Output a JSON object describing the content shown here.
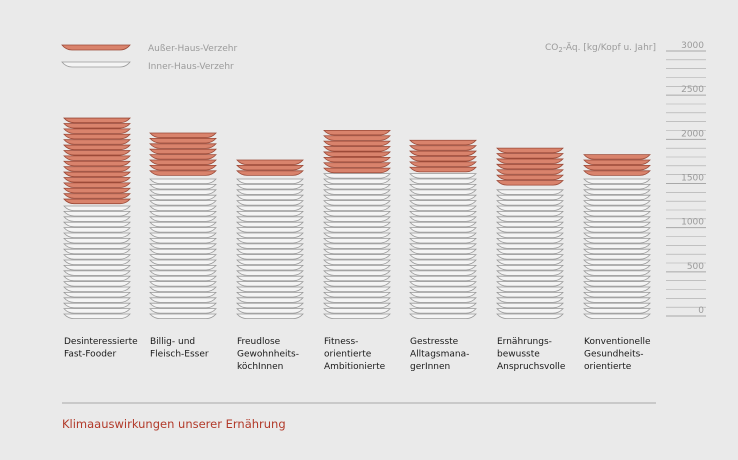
{
  "chart_data": {
    "type": "bar",
    "stacked": true,
    "title": "Klimaauswirkungen unserer Ernährung",
    "unit_label": "CO2-Äq. [kg/Kopf u. Jahr]",
    "ylim": [
      0,
      3000
    ],
    "yticks": [
      0,
      500,
      1000,
      1500,
      2000,
      2500,
      3000
    ],
    "categories": [
      [
        "Desinteressierte",
        "Fast-Fooder"
      ],
      [
        "Billig- und",
        "Fleisch-Esser"
      ],
      [
        "Freudlose",
        "Gewohnheits-",
        "köchInnen"
      ],
      [
        "Fitness-",
        "orientierte",
        "Ambitionierte"
      ],
      [
        "Gestresste",
        "Alltagsmana-",
        "gerInnen"
      ],
      [
        "Ernährungs-",
        "bewusste",
        "Anspruchsvolle"
      ],
      [
        "Konventionelle",
        "Gesundheits-",
        "orientierte"
      ]
    ],
    "series": [
      {
        "name": "Inner-Haus-Verzehr",
        "values": [
          1240,
          1560,
          1560,
          1590,
          1600,
          1450,
          1560
        ]
      },
      {
        "name": "Außer-Haus-Verzehr",
        "values": [
          980,
          500,
          200,
          540,
          390,
          440,
          260
        ]
      }
    ],
    "colors": {
      "inner": "#f4f4f4",
      "inner_rim": "#9a9a9a",
      "outer": "#d9836c",
      "outer_rim": "#9c4a38",
      "axis": "#a8a8a8",
      "title": "#b23a2a"
    },
    "legend": {
      "placement": "top-left"
    }
  }
}
